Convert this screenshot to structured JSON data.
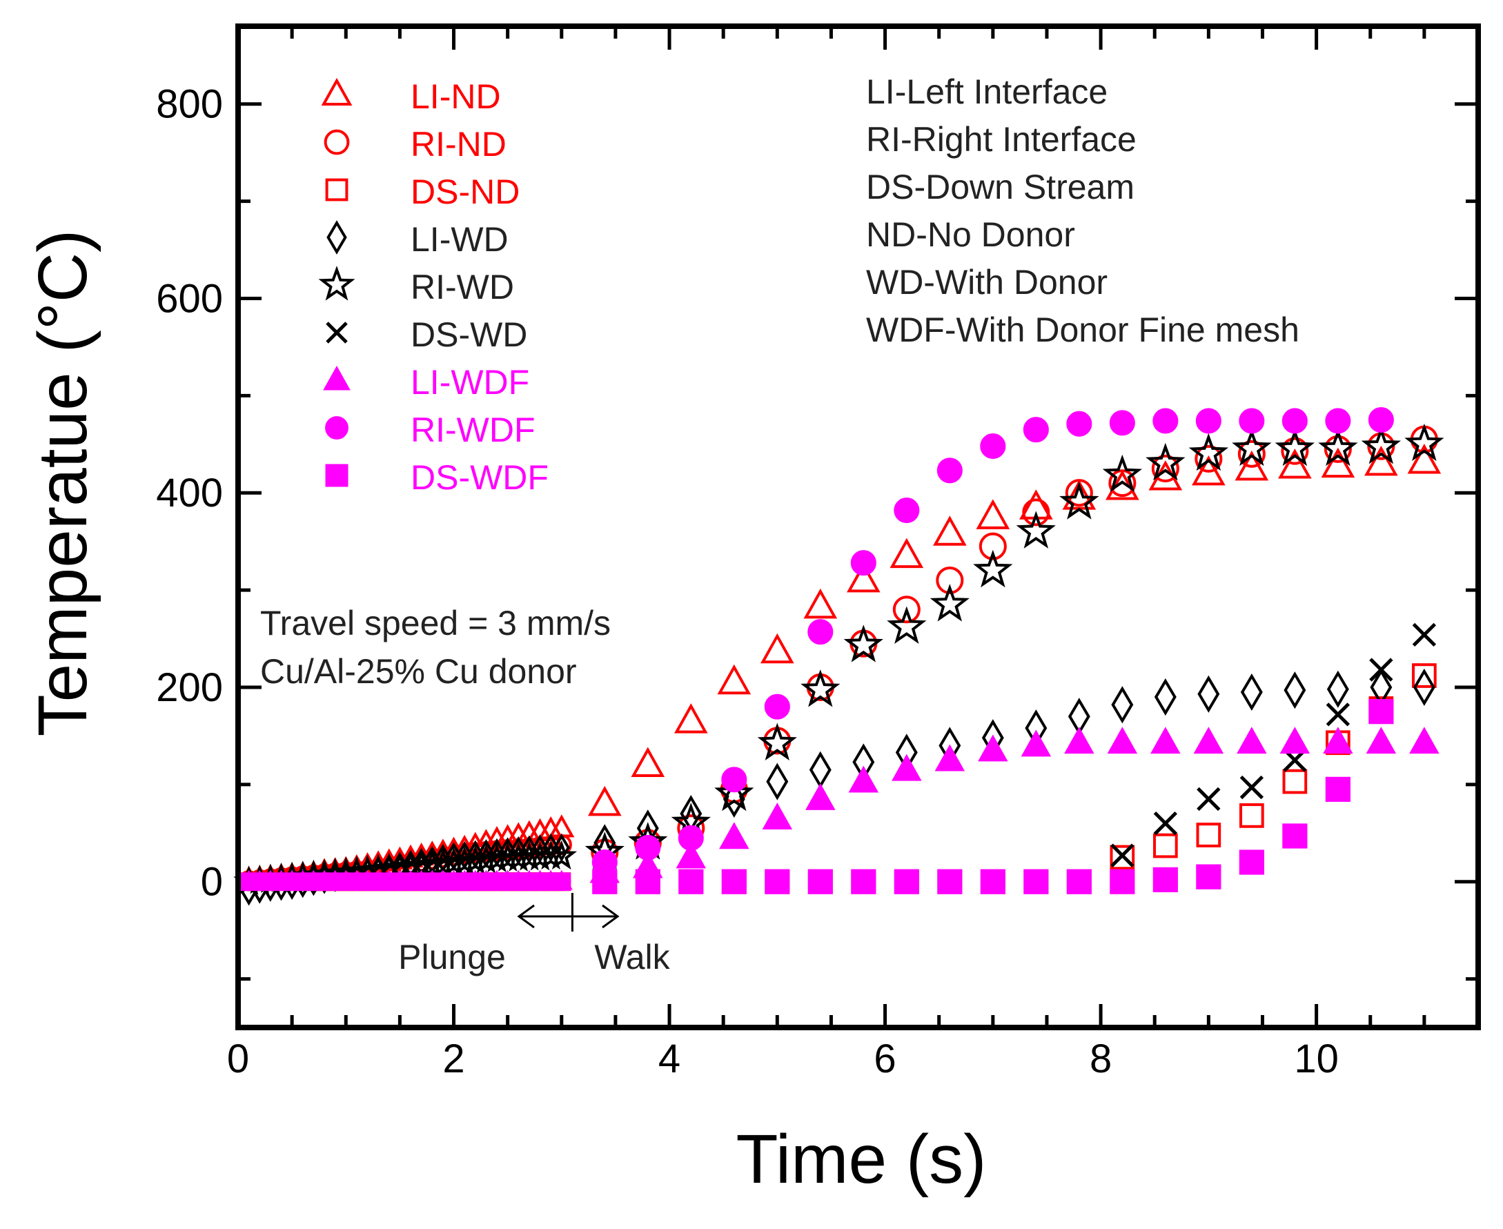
{
  "chart_data": {
    "type": "scatter",
    "title": "",
    "xlabel": "Time (s)",
    "ylabel": "Temperatue (°C)",
    "xlim": [
      0,
      11.5
    ],
    "ylim": [
      -150,
      880
    ],
    "xticks": [
      0,
      2,
      4,
      6,
      8,
      10
    ],
    "yticks": [
      0,
      200,
      400,
      600,
      800
    ],
    "grid": false,
    "legend_position": "top-left",
    "series": [
      {
        "name": "LI-ND",
        "marker": "triangle-open",
        "color": "#ff0000",
        "x": [
          0.1,
          0.2,
          0.3,
          0.4,
          0.5,
          0.6,
          0.7,
          0.8,
          0.9,
          1.0,
          1.1,
          1.2,
          1.3,
          1.4,
          1.5,
          1.6,
          1.7,
          1.8,
          1.9,
          2.0,
          2.1,
          2.2,
          2.3,
          2.4,
          2.5,
          2.6,
          2.7,
          2.8,
          2.9,
          3.0,
          3.4,
          3.8,
          4.2,
          4.6,
          5.0,
          5.4,
          5.8,
          6.2,
          6.6,
          7.0,
          7.4,
          7.8,
          8.2,
          8.6,
          9.0,
          9.4,
          9.8,
          10.2,
          10.6,
          11.0
        ],
        "y": [
          2,
          3,
          4,
          5,
          6,
          7,
          8,
          10,
          11,
          12,
          14,
          16,
          18,
          20,
          22,
          24,
          26,
          28,
          30,
          32,
          34,
          37,
          40,
          43,
          45,
          47,
          49,
          51,
          53,
          55,
          80,
          120,
          165,
          205,
          237,
          283,
          310,
          335,
          358,
          375,
          385,
          395,
          405,
          415,
          420,
          425,
          427,
          428,
          430,
          432
        ]
      },
      {
        "name": "RI-ND",
        "marker": "circle-open",
        "color": "#ff0000",
        "x": [
          0.1,
          0.2,
          0.3,
          0.4,
          0.5,
          0.6,
          0.7,
          0.8,
          0.9,
          1.0,
          1.1,
          1.2,
          1.3,
          1.4,
          1.5,
          1.6,
          1.7,
          1.8,
          1.9,
          2.0,
          2.1,
          2.2,
          2.3,
          2.4,
          2.5,
          2.6,
          2.7,
          2.8,
          2.9,
          3.0,
          3.4,
          3.8,
          4.2,
          4.6,
          5.0,
          5.4,
          5.8,
          6.2,
          6.6,
          7.0,
          7.4,
          7.8,
          8.2,
          8.6,
          9.0,
          9.4,
          9.8,
          10.2,
          10.6,
          11.0
        ],
        "y": [
          1,
          2,
          3,
          4,
          5,
          6,
          7,
          8,
          9,
          10,
          11,
          12,
          13,
          15,
          17,
          19,
          21,
          23,
          25,
          27,
          29,
          30,
          31,
          32,
          33,
          34,
          35,
          36,
          37,
          38,
          30,
          40,
          55,
          95,
          145,
          200,
          245,
          280,
          310,
          345,
          380,
          400,
          410,
          425,
          435,
          440,
          443,
          445,
          448,
          455
        ]
      },
      {
        "name": "DS-ND",
        "marker": "square-open",
        "color": "#ff0000",
        "x": [
          0.1,
          0.2,
          0.3,
          0.4,
          0.5,
          0.6,
          0.7,
          0.8,
          0.9,
          1.0,
          1.1,
          1.2,
          1.3,
          1.4,
          1.5,
          1.6,
          1.7,
          1.8,
          1.9,
          2.0,
          2.1,
          2.2,
          2.3,
          2.4,
          2.5,
          2.6,
          2.7,
          2.8,
          2.9,
          3.0,
          3.4,
          3.8,
          4.2,
          4.6,
          5.0,
          5.4,
          5.8,
          6.2,
          6.6,
          7.0,
          7.4,
          7.8,
          8.2,
          8.6,
          9.0,
          9.4,
          9.8,
          10.2,
          10.6,
          11.0
        ],
        "y": [
          0,
          0,
          0,
          0,
          0,
          0,
          0,
          0,
          0,
          0,
          0,
          0,
          0,
          0,
          0,
          0,
          0,
          0,
          0,
          0,
          0,
          0,
          0,
          0,
          0,
          0,
          0,
          0,
          0,
          0,
          0,
          0,
          0,
          0,
          0,
          0,
          0,
          0,
          0,
          0,
          0,
          0,
          25,
          37,
          48,
          68,
          103,
          143,
          178,
          212
        ]
      },
      {
        "name": "LI-WD",
        "marker": "diamond-open",
        "color": "#000000",
        "x": [
          0.1,
          0.2,
          0.3,
          0.4,
          0.5,
          0.6,
          0.7,
          0.8,
          0.9,
          1.0,
          1.1,
          1.2,
          1.3,
          1.4,
          1.5,
          1.6,
          1.7,
          1.8,
          1.9,
          2.0,
          2.1,
          2.2,
          2.3,
          2.4,
          2.5,
          2.6,
          2.7,
          2.8,
          2.9,
          3.0,
          3.4,
          3.8,
          4.2,
          4.6,
          5.0,
          5.4,
          5.8,
          6.2,
          6.6,
          7.0,
          7.4,
          7.8,
          8.2,
          8.6,
          9.0,
          9.4,
          9.8,
          10.2,
          10.6,
          11.0
        ],
        "y": [
          -10,
          -8,
          -6,
          -5,
          -4,
          -2,
          0,
          2,
          4,
          6,
          8,
          10,
          12,
          14,
          16,
          18,
          20,
          22,
          24,
          26,
          27,
          28,
          29,
          30,
          31,
          32,
          33,
          34,
          35,
          35,
          40,
          55,
          70,
          85,
          103,
          115,
          123,
          133,
          140,
          148,
          158,
          170,
          182,
          190,
          193,
          195,
          197,
          198,
          200,
          200
        ]
      },
      {
        "name": "RI-WD",
        "marker": "star-open",
        "color": "#000000",
        "x": [
          0.1,
          0.2,
          0.3,
          0.4,
          0.5,
          0.6,
          0.7,
          0.8,
          0.9,
          1.0,
          1.1,
          1.2,
          1.3,
          1.4,
          1.5,
          1.6,
          1.7,
          1.8,
          1.9,
          2.0,
          2.1,
          2.2,
          2.3,
          2.4,
          2.5,
          2.6,
          2.7,
          2.8,
          2.9,
          3.0,
          3.4,
          3.8,
          4.2,
          4.6,
          5.0,
          5.4,
          5.8,
          6.2,
          6.6,
          7.0,
          7.4,
          7.8,
          8.2,
          8.6,
          9.0,
          9.4,
          9.8,
          10.2,
          10.6,
          11.0
        ],
        "y": [
          0,
          1,
          2,
          3,
          4,
          5,
          6,
          7,
          8,
          9,
          10,
          11,
          12,
          13,
          14,
          15,
          16,
          17,
          18,
          19,
          20,
          21,
          22,
          23,
          24,
          24,
          25,
          25,
          26,
          26,
          30,
          40,
          60,
          90,
          142,
          197,
          243,
          262,
          285,
          320,
          360,
          390,
          418,
          430,
          440,
          445,
          445,
          445,
          447,
          450
        ]
      },
      {
        "name": "DS-WD",
        "marker": "cross",
        "color": "#000000",
        "x": [
          0.1,
          0.2,
          0.3,
          0.4,
          0.5,
          0.6,
          0.7,
          0.8,
          0.9,
          1.0,
          1.1,
          1.2,
          1.3,
          1.4,
          1.5,
          1.6,
          1.7,
          1.8,
          1.9,
          2.0,
          2.1,
          2.2,
          2.3,
          2.4,
          2.5,
          2.6,
          2.7,
          2.8,
          2.9,
          3.0,
          3.4,
          3.8,
          4.2,
          4.6,
          5.0,
          5.4,
          5.8,
          6.2,
          6.6,
          7.0,
          7.4,
          7.8,
          8.2,
          8.6,
          9.0,
          9.4,
          9.8,
          10.2,
          10.6,
          11.0
        ],
        "y": [
          0,
          0,
          0,
          0,
          0,
          0,
          0,
          0,
          0,
          0,
          0,
          0,
          0,
          0,
          0,
          0,
          0,
          0,
          0,
          0,
          0,
          0,
          0,
          0,
          0,
          0,
          0,
          0,
          0,
          0,
          0,
          0,
          0,
          0,
          0,
          0,
          0,
          0,
          0,
          0,
          0,
          0,
          27,
          60,
          85,
          97,
          125,
          172,
          218,
          254
        ]
      },
      {
        "name": "LI-WDF",
        "marker": "triangle-filled",
        "color": "#ff00ff",
        "x": [
          0.1,
          0.2,
          0.3,
          0.4,
          0.5,
          0.6,
          0.7,
          0.8,
          0.9,
          1.0,
          1.1,
          1.2,
          1.3,
          1.4,
          1.5,
          1.6,
          1.7,
          1.8,
          1.9,
          2.0,
          2.1,
          2.2,
          2.3,
          2.4,
          2.5,
          2.6,
          2.7,
          2.8,
          2.9,
          3.0,
          3.4,
          3.8,
          4.2,
          4.6,
          5.0,
          5.4,
          5.8,
          6.2,
          6.6,
          7.0,
          7.4,
          7.8,
          8.2,
          8.6,
          9.0,
          9.4,
          9.8,
          10.2,
          10.6,
          11.0
        ],
        "y": [
          0,
          0,
          0,
          0,
          0,
          0,
          0,
          0,
          0,
          0,
          0,
          0,
          0,
          0,
          0,
          0,
          0,
          0,
          0,
          0,
          0,
          0,
          0,
          0,
          0,
          0,
          0,
          0,
          0,
          0,
          10,
          15,
          25,
          45,
          65,
          85,
          103,
          115,
          125,
          135,
          140,
          143,
          143,
          143,
          143,
          143,
          143,
          143,
          143,
          143
        ]
      },
      {
        "name": "RI-WDF",
        "marker": "circle-filled",
        "color": "#ff00ff",
        "x": [
          0.1,
          0.2,
          0.3,
          0.4,
          0.5,
          0.6,
          0.7,
          0.8,
          0.9,
          1.0,
          1.1,
          1.2,
          1.3,
          1.4,
          1.5,
          1.6,
          1.7,
          1.8,
          1.9,
          2.0,
          2.1,
          2.2,
          2.3,
          2.4,
          2.5,
          2.6,
          2.7,
          2.8,
          2.9,
          3.0,
          3.4,
          3.8,
          4.2,
          4.6,
          5.0,
          5.4,
          5.8,
          6.2,
          6.6,
          7.0,
          7.4,
          7.8,
          8.2,
          8.6,
          9.0,
          9.4,
          9.8,
          10.2,
          10.6
        ],
        "y": [
          0,
          0,
          0,
          0,
          0,
          0,
          0,
          0,
          0,
          0,
          0,
          0,
          0,
          0,
          0,
          0,
          0,
          0,
          0,
          0,
          0,
          0,
          0,
          0,
          0,
          0,
          0,
          0,
          0,
          0,
          20,
          35,
          45,
          105,
          180,
          257,
          328,
          382,
          423,
          448,
          465,
          471,
          472,
          474,
          474,
          474,
          474,
          474,
          475
        ]
      },
      {
        "name": "DS-WDF",
        "marker": "square-filled",
        "color": "#ff00ff",
        "x": [
          0.1,
          0.2,
          0.3,
          0.4,
          0.5,
          0.6,
          0.7,
          0.8,
          0.9,
          1.0,
          1.1,
          1.2,
          1.3,
          1.4,
          1.5,
          1.6,
          1.7,
          1.8,
          1.9,
          2.0,
          2.1,
          2.2,
          2.3,
          2.4,
          2.5,
          2.6,
          2.7,
          2.8,
          2.9,
          3.0,
          3.4,
          3.8,
          4.2,
          4.6,
          5.0,
          5.4,
          5.8,
          6.2,
          6.6,
          7.0,
          7.4,
          7.8,
          8.2,
          8.6,
          9.0,
          9.4,
          9.8,
          10.2,
          10.6
        ],
        "y": [
          0,
          0,
          0,
          0,
          0,
          0,
          0,
          0,
          0,
          0,
          0,
          0,
          0,
          0,
          0,
          0,
          0,
          0,
          0,
          0,
          0,
          0,
          0,
          0,
          0,
          0,
          0,
          0,
          0,
          0,
          0,
          0,
          0,
          0,
          0,
          0,
          0,
          0,
          0,
          0,
          0,
          0,
          0,
          2,
          5,
          20,
          47,
          95,
          175
        ]
      }
    ],
    "abbreviations": [
      "LI-Left Interface",
      "RI-Right Interface",
      "DS-Down Stream",
      "ND-No Donor",
      "WD-With Donor",
      "WDF-With Donor Fine mesh"
    ],
    "annotations": {
      "conditions": [
        "Travel speed = 3 mm/s",
        "Cu/Al-25% Cu donor"
      ],
      "phase_left": "Plunge",
      "phase_right": "Walk",
      "phase_boundary_x": 3.1
    }
  }
}
